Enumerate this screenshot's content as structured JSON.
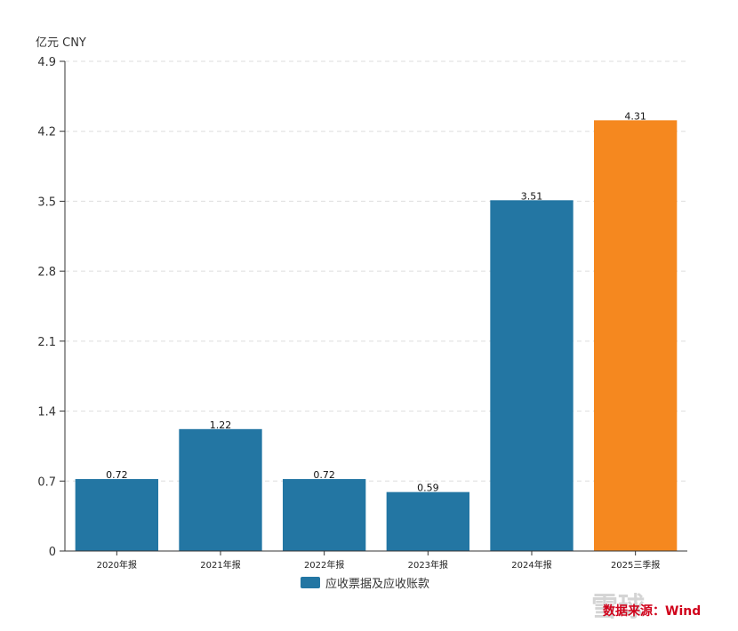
{
  "chart_data": {
    "type": "bar",
    "unit_label": "亿元  CNY",
    "categories": [
      "2020年报",
      "2021年报",
      "2022年报",
      "2023年报",
      "2024年报",
      "2025三季报"
    ],
    "series": [
      {
        "name": "应收票据及应收账款",
        "values": [
          0.72,
          1.22,
          0.72,
          0.59,
          3.51,
          4.31
        ],
        "value_labels": [
          "0.72",
          "1.22",
          "0.72",
          "0.59",
          "3.51",
          "4.31"
        ]
      }
    ],
    "ylim": [
      0,
      4.9
    ],
    "yticks": [
      0,
      0.7,
      1.4,
      2.1,
      2.8,
      3.5,
      4.2,
      4.9
    ],
    "ytick_labels": [
      "0",
      "0.7",
      "1.4",
      "2.1",
      "2.8",
      "3.5",
      "4.2",
      "4.9"
    ],
    "grid": true,
    "legend_position": "bottom",
    "colors": {
      "bar": "#2376a3",
      "highlight_bar": "#f5881f",
      "grid": "#dddddd",
      "axis": "#333333"
    },
    "highlight_index": 5
  },
  "source": "数据来源：Wind",
  "watermark": "雪球"
}
